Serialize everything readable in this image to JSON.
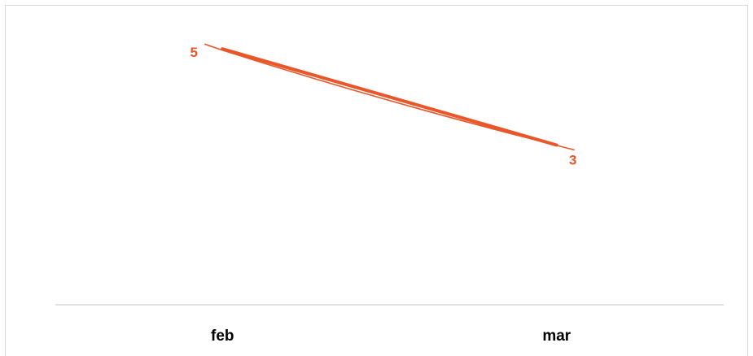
{
  "chart_data": {
    "type": "line",
    "categories": [
      "feb",
      "mar"
    ],
    "series": [
      {
        "values": [
          5,
          3
        ],
        "color": "#e8562a"
      }
    ],
    "data_labels": [
      "5",
      "3"
    ],
    "ylim": [
      0,
      6
    ],
    "grid": false,
    "legend": "none",
    "axis_color": "#d9d9d9"
  }
}
